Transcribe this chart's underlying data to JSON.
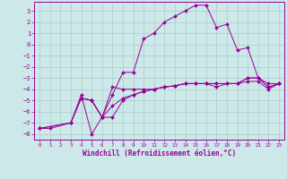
{
  "xlabel": "Windchill (Refroidissement éolien,°C)",
  "xlim": [
    -0.5,
    23.5
  ],
  "ylim": [
    -8.5,
    3.8
  ],
  "xticks": [
    0,
    1,
    2,
    3,
    4,
    5,
    6,
    7,
    8,
    9,
    10,
    11,
    12,
    13,
    14,
    15,
    16,
    17,
    18,
    19,
    20,
    21,
    22,
    23
  ],
  "yticks": [
    3,
    2,
    1,
    0,
    -1,
    -2,
    -3,
    -4,
    -5,
    -6,
    -7,
    -8
  ],
  "background_color": "#cce8e8",
  "grid_color": "#aacccc",
  "line_color": "#990099",
  "curves": [
    {
      "x": [
        0,
        1,
        3,
        4,
        5,
        6,
        7,
        8,
        9,
        10,
        11,
        12,
        13,
        14,
        15,
        16,
        17,
        18,
        19,
        20,
        21,
        22,
        23
      ],
      "y": [
        -7.5,
        -7.5,
        -7.0,
        -4.5,
        -8.0,
        -6.5,
        -4.5,
        -2.5,
        -2.5,
        0.5,
        1.0,
        2.0,
        2.5,
        3.0,
        3.5,
        3.5,
        1.5,
        1.8,
        -0.5,
        -0.3,
        -3.0,
        -3.8,
        -3.5
      ]
    },
    {
      "x": [
        0,
        3,
        4,
        5,
        6,
        7,
        8,
        9,
        10,
        11,
        12,
        13,
        14,
        15,
        16,
        17,
        18,
        19,
        20,
        21,
        22,
        23
      ],
      "y": [
        -7.5,
        -7.0,
        -4.8,
        -5.0,
        -6.5,
        -6.5,
        -5.0,
        -4.5,
        -4.2,
        -4.0,
        -3.8,
        -3.7,
        -3.5,
        -3.5,
        -3.5,
        -3.8,
        -3.5,
        -3.5,
        -3.3,
        -3.3,
        -4.0,
        -3.5
      ]
    },
    {
      "x": [
        0,
        3,
        4,
        5,
        6,
        7,
        8,
        9,
        10,
        11,
        12,
        13,
        14,
        15,
        16,
        17,
        18,
        19,
        20,
        21,
        22,
        23
      ],
      "y": [
        -7.5,
        -7.0,
        -4.8,
        -5.0,
        -6.5,
        -5.5,
        -4.8,
        -4.5,
        -4.2,
        -4.0,
        -3.8,
        -3.7,
        -3.5,
        -3.5,
        -3.5,
        -3.5,
        -3.5,
        -3.5,
        -3.0,
        -3.0,
        -3.5,
        -3.5
      ]
    },
    {
      "x": [
        4,
        5,
        6,
        7,
        8,
        9,
        10,
        11,
        12,
        13,
        14,
        15,
        16,
        17,
        18,
        19,
        20,
        21,
        22,
        23
      ],
      "y": [
        -4.8,
        -5.0,
        -6.5,
        -3.8,
        -4.0,
        -4.0,
        -4.0,
        -4.0,
        -3.8,
        -3.7,
        -3.5,
        -3.5,
        -3.5,
        -3.5,
        -3.5,
        -3.5,
        -3.0,
        -3.0,
        -3.8,
        -3.5
      ]
    }
  ]
}
